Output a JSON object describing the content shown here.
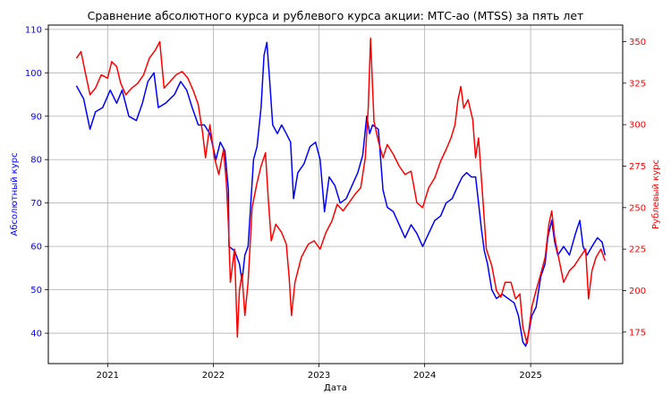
{
  "chart_data": {
    "type": "line",
    "title": "Сравнение абсолютного курса и рублевого курса акции: МТС-ао (MTSS) за пять лет",
    "xlabel": "Дата",
    "ylabel_left": "Абсолютный курс",
    "ylabel_right": "Рублевый курс",
    "grid": true,
    "x_ticks": [
      "2021",
      "2022",
      "2023",
      "2024",
      "2025"
    ],
    "x_range": [
      "2020-06-10",
      "2025-11-15"
    ],
    "y_left": {
      "ylim": [
        33,
        111
      ],
      "ticks": [
        40,
        50,
        60,
        70,
        80,
        90,
        100,
        110
      ],
      "color": "#0000ff"
    },
    "y_right": {
      "ylim": [
        156,
        360
      ],
      "ticks": [
        175,
        200,
        225,
        250,
        275,
        300,
        325,
        350
      ],
      "color": "#ff0000"
    },
    "series": [
      {
        "axis": "left",
        "color": "#0000ff",
        "points": [
          [
            "2020-09-15",
            97
          ],
          [
            "2020-10-10",
            94
          ],
          [
            "2020-11-01",
            87
          ],
          [
            "2020-11-20",
            91
          ],
          [
            "2020-12-15",
            92
          ],
          [
            "2021-01-10",
            96
          ],
          [
            "2021-02-01",
            93
          ],
          [
            "2021-02-20",
            96
          ],
          [
            "2021-03-15",
            90
          ],
          [
            "2021-04-10",
            89
          ],
          [
            "2021-05-01",
            93
          ],
          [
            "2021-05-20",
            98
          ],
          [
            "2021-06-10",
            100
          ],
          [
            "2021-06-25",
            92
          ],
          [
            "2021-07-20",
            93
          ],
          [
            "2021-08-20",
            95
          ],
          [
            "2021-09-10",
            98
          ],
          [
            "2021-10-01",
            96
          ],
          [
            "2021-10-20",
            92
          ],
          [
            "2021-11-10",
            88
          ],
          [
            "2021-12-01",
            88
          ],
          [
            "2021-12-20",
            86
          ],
          [
            "2022-01-10",
            80
          ],
          [
            "2022-01-25",
            84
          ],
          [
            "2022-02-10",
            82
          ],
          [
            "2022-02-22",
            73
          ],
          [
            "2022-02-24",
            60
          ],
          [
            "2022-03-15",
            59
          ],
          [
            "2022-04-01",
            56
          ],
          [
            "2022-04-10",
            52
          ],
          [
            "2022-04-20",
            58
          ],
          [
            "2022-05-01",
            60
          ],
          [
            "2022-05-20",
            80
          ],
          [
            "2022-06-01",
            83
          ],
          [
            "2022-06-15",
            92
          ],
          [
            "2022-06-25",
            104
          ],
          [
            "2022-07-05",
            107
          ],
          [
            "2022-07-15",
            98
          ],
          [
            "2022-07-25",
            88
          ],
          [
            "2022-08-10",
            86
          ],
          [
            "2022-08-25",
            88
          ],
          [
            "2022-09-10",
            86
          ],
          [
            "2022-09-25",
            84
          ],
          [
            "2022-10-05",
            71
          ],
          [
            "2022-10-20",
            77
          ],
          [
            "2022-11-10",
            79
          ],
          [
            "2022-12-01",
            83
          ],
          [
            "2022-12-20",
            84
          ],
          [
            "2023-01-05",
            80
          ],
          [
            "2023-01-20",
            68
          ],
          [
            "2023-02-05",
            76
          ],
          [
            "2023-02-25",
            74
          ],
          [
            "2023-03-15",
            70
          ],
          [
            "2023-04-05",
            71
          ],
          [
            "2023-04-25",
            74
          ],
          [
            "2023-05-15",
            77
          ],
          [
            "2023-06-01",
            81
          ],
          [
            "2023-06-15",
            90
          ],
          [
            "2023-06-25",
            86
          ],
          [
            "2023-07-05",
            88
          ],
          [
            "2023-07-25",
            87
          ],
          [
            "2023-08-10",
            73
          ],
          [
            "2023-08-25",
            69
          ],
          [
            "2023-09-15",
            68
          ],
          [
            "2023-10-05",
            65
          ],
          [
            "2023-10-25",
            62
          ],
          [
            "2023-11-15",
            65
          ],
          [
            "2023-12-05",
            63
          ],
          [
            "2023-12-25",
            60
          ],
          [
            "2024-01-15",
            63
          ],
          [
            "2024-02-05",
            66
          ],
          [
            "2024-02-25",
            67
          ],
          [
            "2024-03-15",
            70
          ],
          [
            "2024-04-05",
            71
          ],
          [
            "2024-04-25",
            74
          ],
          [
            "2024-05-10",
            76
          ],
          [
            "2024-05-25",
            77
          ],
          [
            "2024-06-10",
            76
          ],
          [
            "2024-06-25",
            76
          ],
          [
            "2024-07-05",
            70
          ],
          [
            "2024-07-15",
            64
          ],
          [
            "2024-07-25",
            59
          ],
          [
            "2024-08-05",
            56
          ],
          [
            "2024-08-20",
            50
          ],
          [
            "2024-09-05",
            48
          ],
          [
            "2024-09-25",
            49
          ],
          [
            "2024-10-15",
            48
          ],
          [
            "2024-11-05",
            47
          ],
          [
            "2024-11-20",
            44
          ],
          [
            "2024-12-05",
            38
          ],
          [
            "2024-12-15",
            37
          ],
          [
            "2024-12-25",
            40
          ],
          [
            "2025-01-05",
            44
          ],
          [
            "2025-01-20",
            46
          ],
          [
            "2025-02-05",
            53
          ],
          [
            "2025-02-20",
            56
          ],
          [
            "2025-03-01",
            62
          ],
          [
            "2025-03-15",
            66
          ],
          [
            "2025-03-25",
            61
          ],
          [
            "2025-04-05",
            58
          ],
          [
            "2025-04-25",
            60
          ],
          [
            "2025-05-15",
            58
          ],
          [
            "2025-06-05",
            63
          ],
          [
            "2025-06-20",
            66
          ],
          [
            "2025-07-01",
            60
          ],
          [
            "2025-07-15",
            58
          ],
          [
            "2025-08-01",
            60
          ],
          [
            "2025-08-20",
            62
          ],
          [
            "2025-09-05",
            61
          ],
          [
            "2025-09-15",
            58
          ]
        ]
      },
      {
        "axis": "right",
        "color": "#ff0000",
        "points": [
          [
            "2020-09-15",
            340
          ],
          [
            "2020-10-01",
            344
          ],
          [
            "2020-10-15",
            332
          ],
          [
            "2020-11-01",
            318
          ],
          [
            "2020-11-20",
            322
          ],
          [
            "2020-12-10",
            330
          ],
          [
            "2021-01-01",
            328
          ],
          [
            "2021-01-15",
            338
          ],
          [
            "2021-02-01",
            335
          ],
          [
            "2021-02-15",
            325
          ],
          [
            "2021-03-05",
            318
          ],
          [
            "2021-03-25",
            322
          ],
          [
            "2021-04-15",
            325
          ],
          [
            "2021-05-05",
            330
          ],
          [
            "2021-05-25",
            340
          ],
          [
            "2021-06-15",
            345
          ],
          [
            "2021-06-30",
            350
          ],
          [
            "2021-07-15",
            322
          ],
          [
            "2021-08-05",
            326
          ],
          [
            "2021-08-25",
            330
          ],
          [
            "2021-09-15",
            332
          ],
          [
            "2021-10-05",
            328
          ],
          [
            "2021-10-25",
            320
          ],
          [
            "2021-11-10",
            312
          ],
          [
            "2021-11-25",
            295
          ],
          [
            "2021-12-05",
            280
          ],
          [
            "2021-12-20",
            300
          ],
          [
            "2022-01-05",
            280
          ],
          [
            "2022-01-20",
            270
          ],
          [
            "2022-02-05",
            285
          ],
          [
            "2022-02-15",
            265
          ],
          [
            "2022-02-22",
            240
          ],
          [
            "2022-03-01",
            205
          ],
          [
            "2022-03-15",
            225
          ],
          [
            "2022-03-25",
            172
          ],
          [
            "2022-04-01",
            200
          ],
          [
            "2022-04-10",
            210
          ],
          [
            "2022-04-20",
            185
          ],
          [
            "2022-05-01",
            205
          ],
          [
            "2022-05-15",
            250
          ],
          [
            "2022-06-01",
            265
          ],
          [
            "2022-06-15",
            275
          ],
          [
            "2022-06-30",
            283
          ],
          [
            "2022-07-10",
            255
          ],
          [
            "2022-07-20",
            230
          ],
          [
            "2022-08-05",
            240
          ],
          [
            "2022-08-25",
            235
          ],
          [
            "2022-09-10",
            228
          ],
          [
            "2022-09-20",
            208
          ],
          [
            "2022-09-28",
            185
          ],
          [
            "2022-10-10",
            205
          ],
          [
            "2022-11-01",
            220
          ],
          [
            "2022-11-25",
            228
          ],
          [
            "2022-12-15",
            230
          ],
          [
            "2023-01-05",
            225
          ],
          [
            "2023-01-25",
            235
          ],
          [
            "2023-02-15",
            242
          ],
          [
            "2023-03-05",
            252
          ],
          [
            "2023-03-25",
            248
          ],
          [
            "2023-04-15",
            253
          ],
          [
            "2023-05-05",
            258
          ],
          [
            "2023-05-25",
            262
          ],
          [
            "2023-06-10",
            280
          ],
          [
            "2023-06-20",
            310
          ],
          [
            "2023-06-28",
            352
          ],
          [
            "2023-07-10",
            302
          ],
          [
            "2023-07-25",
            290
          ],
          [
            "2023-08-10",
            280
          ],
          [
            "2023-08-25",
            288
          ],
          [
            "2023-09-15",
            282
          ],
          [
            "2023-10-05",
            275
          ],
          [
            "2023-10-25",
            270
          ],
          [
            "2023-11-15",
            272
          ],
          [
            "2023-12-05",
            253
          ],
          [
            "2023-12-25",
            250
          ],
          [
            "2024-01-15",
            262
          ],
          [
            "2024-02-05",
            268
          ],
          [
            "2024-02-25",
            278
          ],
          [
            "2024-03-15",
            285
          ],
          [
            "2024-04-01",
            292
          ],
          [
            "2024-04-15",
            300
          ],
          [
            "2024-04-25",
            315
          ],
          [
            "2024-05-05",
            323
          ],
          [
            "2024-05-15",
            310
          ],
          [
            "2024-05-30",
            315
          ],
          [
            "2024-06-15",
            303
          ],
          [
            "2024-06-25",
            280
          ],
          [
            "2024-07-05",
            292
          ],
          [
            "2024-07-20",
            255
          ],
          [
            "2024-08-01",
            225
          ],
          [
            "2024-08-20",
            215
          ],
          [
            "2024-09-05",
            200
          ],
          [
            "2024-09-20",
            196
          ],
          [
            "2024-10-05",
            205
          ],
          [
            "2024-10-25",
            205
          ],
          [
            "2024-11-10",
            195
          ],
          [
            "2024-11-25",
            198
          ],
          [
            "2024-12-05",
            178
          ],
          [
            "2024-12-20",
            168
          ],
          [
            "2025-01-05",
            190
          ],
          [
            "2025-01-20",
            200
          ],
          [
            "2025-02-05",
            210
          ],
          [
            "2025-02-20",
            220
          ],
          [
            "2025-03-05",
            240
          ],
          [
            "2025-03-15",
            248
          ],
          [
            "2025-03-25",
            232
          ],
          [
            "2025-04-10",
            218
          ],
          [
            "2025-04-25",
            205
          ],
          [
            "2025-05-15",
            212
          ],
          [
            "2025-06-01",
            215
          ],
          [
            "2025-06-20",
            220
          ],
          [
            "2025-07-10",
            225
          ],
          [
            "2025-07-20",
            195
          ],
          [
            "2025-08-01",
            212
          ],
          [
            "2025-08-15",
            220
          ],
          [
            "2025-09-01",
            225
          ],
          [
            "2025-09-15",
            218
          ]
        ]
      }
    ]
  }
}
